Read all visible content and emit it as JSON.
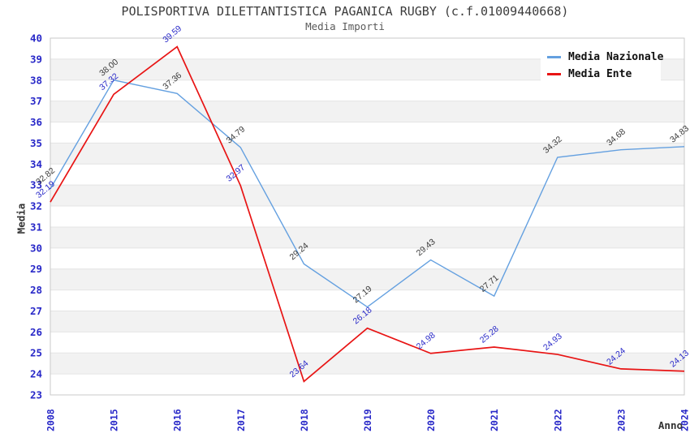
{
  "header": {
    "title": "POLISPORTIVA DILETTANTISTICA PAGANICA RUGBY (c.f.01009440668)",
    "subtitle": "Media Importi"
  },
  "chart_data": {
    "type": "line",
    "title": "POLISPORTIVA DILETTANTISTICA PAGANICA RUGBY (c.f.01009440668)",
    "subtitle": "Media Importi",
    "x": [
      "2008",
      "2015",
      "2016",
      "2017",
      "2018",
      "2019",
      "2020",
      "2021",
      "2022",
      "2023",
      "2024"
    ],
    "xlabel": "Anno",
    "ylabel": "Media",
    "ylim": [
      23,
      40
    ],
    "ytick_step": 1,
    "grid": "horizontal-bands-alternating",
    "legend_position": "top-right-inside",
    "series": [
      {
        "name": "Media Nazionale",
        "color": "#64a0e0",
        "label_color": "#3a3a3a",
        "values": [
          32.82,
          38.0,
          37.36,
          34.79,
          29.24,
          27.19,
          29.43,
          27.71,
          34.32,
          34.68,
          34.83
        ]
      },
      {
        "name": "Media Ente",
        "color": "#e81414",
        "label_color": "#2828c8",
        "values": [
          32.19,
          37.32,
          39.59,
          32.97,
          23.64,
          26.18,
          24.98,
          25.28,
          24.93,
          24.24,
          24.13
        ]
      }
    ]
  },
  "colors": {
    "axis_tick": "#2828c8",
    "band": "#f2f2f2",
    "grid": "#e4e4e4",
    "border": "#c9c9c9",
    "title": "#3c3c3c",
    "axis_title": "#333333",
    "legend_text": "#111111",
    "background": "#ffffff"
  }
}
